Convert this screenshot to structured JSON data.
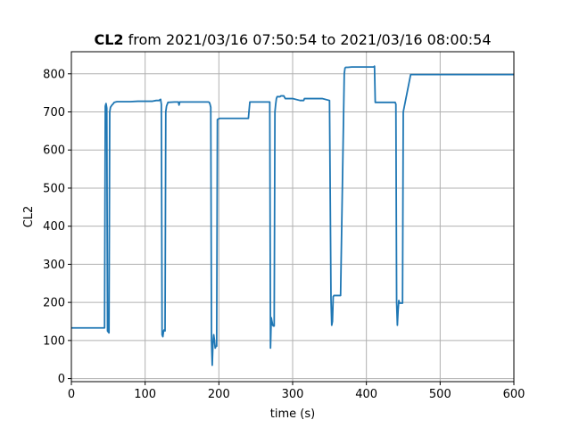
{
  "chart_data": {
    "type": "line",
    "title_bold": "CL2",
    "title_rest": " from 2021/03/16 07:50:54 to 2021/03/16 08:00:54",
    "xlabel": "time (s)",
    "ylabel": "CL2",
    "xlim": [
      0,
      600
    ],
    "ylim": [
      -8,
      858
    ],
    "x_ticks": [
      0,
      100,
      200,
      300,
      400,
      500,
      600
    ],
    "y_ticks": [
      0,
      100,
      200,
      300,
      400,
      500,
      600,
      700,
      800
    ],
    "grid": true,
    "line_color": "#1f77b4",
    "series": [
      {
        "x": [
          0,
          45,
          46,
          47,
          48,
          49,
          51,
          52,
          53,
          54,
          55,
          56,
          57,
          58,
          60,
          62,
          65,
          70,
          80,
          90,
          100,
          110,
          115,
          119,
          120,
          121,
          122,
          123,
          124,
          125,
          126,
          127,
          128,
          129,
          130,
          131,
          140,
          145,
          146,
          147,
          150,
          160,
          170,
          180,
          186,
          187,
          188,
          189,
          190,
          191,
          192,
          193,
          194,
          195,
          196,
          197,
          198,
          200,
          201,
          202,
          203,
          205,
          210,
          220,
          230,
          240,
          242,
          243,
          245,
          250,
          255,
          260,
          265,
          269,
          270,
          271,
          272,
          273,
          274,
          275,
          276,
          277,
          278,
          279,
          280,
          282,
          283,
          284,
          285,
          286,
          287,
          288,
          290,
          300,
          310,
          315,
          316,
          320,
          330,
          340,
          350,
          352,
          353,
          354,
          355,
          356,
          357,
          358,
          360,
          365,
          370,
          371,
          372,
          373,
          375,
          380,
          390,
          400,
          410,
          411,
          412,
          415,
          420,
          425,
          430,
          435,
          437,
          438,
          439,
          440,
          441,
          442,
          443,
          444,
          445,
          447,
          448,
          449,
          450,
          460,
          470,
          480,
          485,
          487,
          488,
          489,
          490,
          495,
          500,
          505,
          507,
          508,
          509,
          510,
          511,
          512,
          513,
          514,
          515,
          517,
          518,
          519,
          520,
          521,
          522,
          525,
          530,
          540,
          555,
          556,
          557,
          560,
          570,
          580,
          583,
          584,
          585,
          586,
          587,
          588,
          590,
          595,
          596,
          597,
          598,
          599,
          600
        ],
        "y": [
          133,
          133,
          715,
          722,
          710,
          125,
          120,
          700,
          712,
          715,
          718,
          720,
          722,
          725,
          726,
          727,
          727,
          727,
          727,
          728,
          728,
          728,
          730,
          730,
          732,
          733,
          720,
          115,
          110,
          125,
          128,
          125,
          700,
          715,
          720,
          725,
          726,
          726,
          718,
          726,
          726,
          726,
          726,
          726,
          726,
          725,
          720,
          712,
          100,
          35,
          95,
          115,
          100,
          80,
          85,
          85,
          680,
          682,
          683,
          683,
          683,
          683,
          683,
          683,
          683,
          683,
          726,
          726,
          726,
          726,
          726,
          726,
          726,
          726,
          80,
          160,
          150,
          140,
          138,
          138,
          700,
          720,
          735,
          740,
          740,
          740,
          740,
          742,
          742,
          742,
          742,
          742,
          735,
          735,
          730,
          730,
          735,
          735,
          735,
          735,
          730,
          210,
          140,
          150,
          215,
          218,
          218,
          218,
          218,
          218,
          800,
          815,
          817,
          817,
          817,
          818,
          818,
          818,
          818,
          820,
          725,
          725,
          725,
          725,
          725,
          725,
          725,
          725,
          725,
          720,
          200,
          140,
          180,
          205,
          198,
          198,
          198,
          198,
          700,
          798,
          798,
          798,
          798,
          798,
          798,
          798,
          798,
          798,
          798,
          798,
          798,
          798,
          798,
          798,
          798,
          798,
          798,
          798,
          798,
          798,
          798,
          798,
          798,
          798,
          798,
          798,
          798,
          798,
          798,
          798,
          798,
          798,
          798,
          798,
          798,
          798,
          798,
          798,
          798,
          798,
          798,
          798,
          798,
          798,
          798,
          798,
          798
        ]
      }
    ]
  }
}
